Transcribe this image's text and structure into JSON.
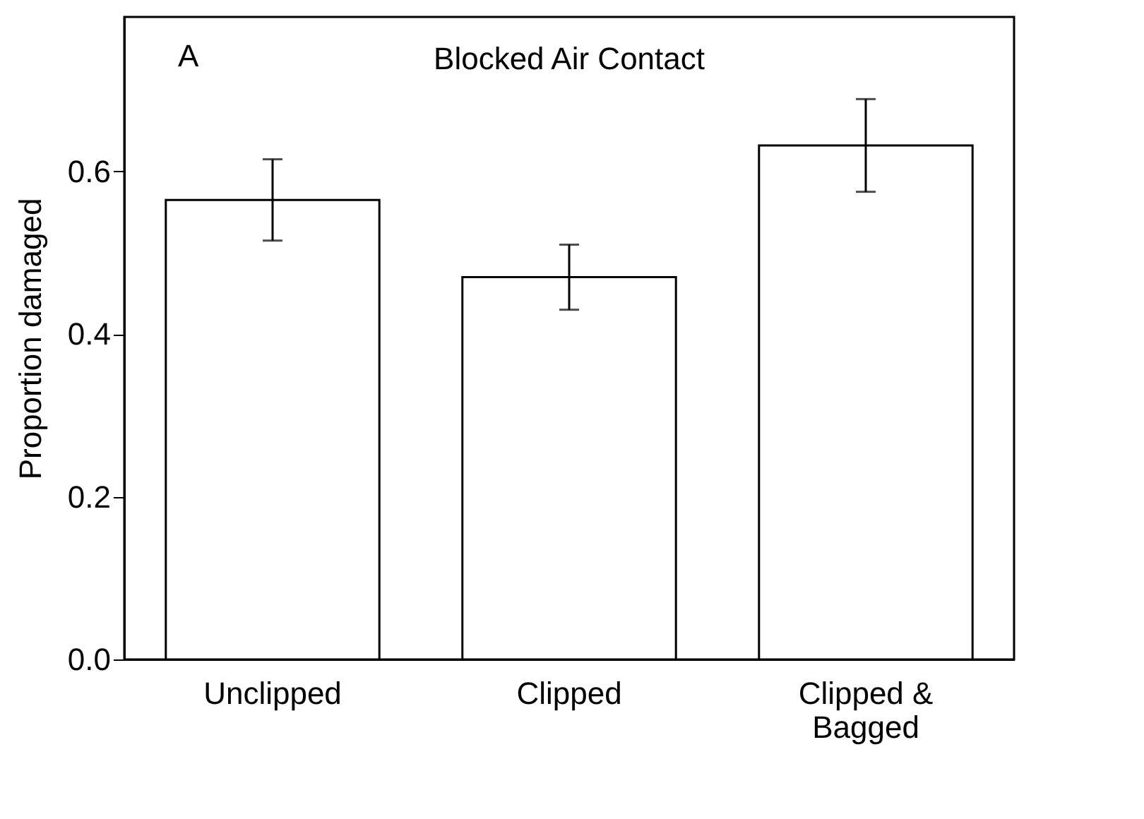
{
  "chart_data": {
    "type": "bar",
    "title": "Blocked Air Contact",
    "ylabel": "Proportion damaged",
    "annotations": [
      "A"
    ],
    "categories": [
      "Unclipped",
      "Clipped",
      "Clipped & Bagged"
    ],
    "values": [
      0.565,
      0.47,
      0.632
    ],
    "errors": [
      0.05,
      0.04,
      0.057
    ],
    "color": "#ffffff",
    "ylim": [
      0,
      0.79
    ],
    "yticks": [
      {
        "value": 0,
        "label": "0.0"
      },
      {
        "value": 0.2,
        "label": "0.2"
      },
      {
        "value": 0.4,
        "label": "0.4"
      },
      {
        "value": 0.6,
        "label": "0.6"
      }
    ],
    "grid": false
  }
}
